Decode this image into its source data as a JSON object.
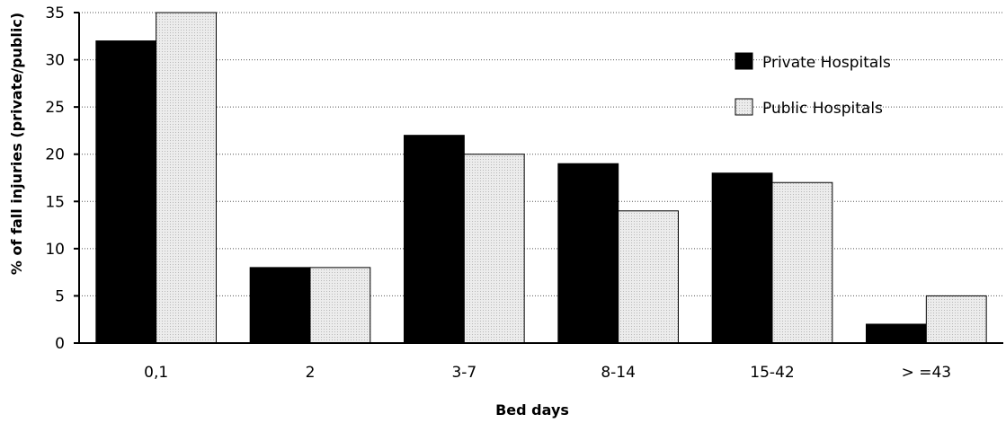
{
  "chart_data": {
    "type": "bar",
    "title": "",
    "xlabel": "Bed days",
    "ylabel": "% of fall injuries (private/public)",
    "categories": [
      "0,1",
      "2",
      "3-7",
      "8-14",
      "15-42",
      "> =43"
    ],
    "series": [
      {
        "name": "Private Hospitals",
        "values": [
          32,
          8,
          22,
          19,
          18,
          2
        ],
        "color": "#000000"
      },
      {
        "name": "Public Hospitals",
        "values": [
          35,
          8,
          20,
          14,
          17,
          5
        ],
        "color": "#e6e6e6"
      }
    ],
    "ylim": [
      0,
      35
    ],
    "yticks": [
      "0",
      "5",
      "10",
      "15",
      "20",
      "25",
      "30",
      "35"
    ],
    "grid": "horizontal dotted",
    "legend_position": "top-right"
  }
}
